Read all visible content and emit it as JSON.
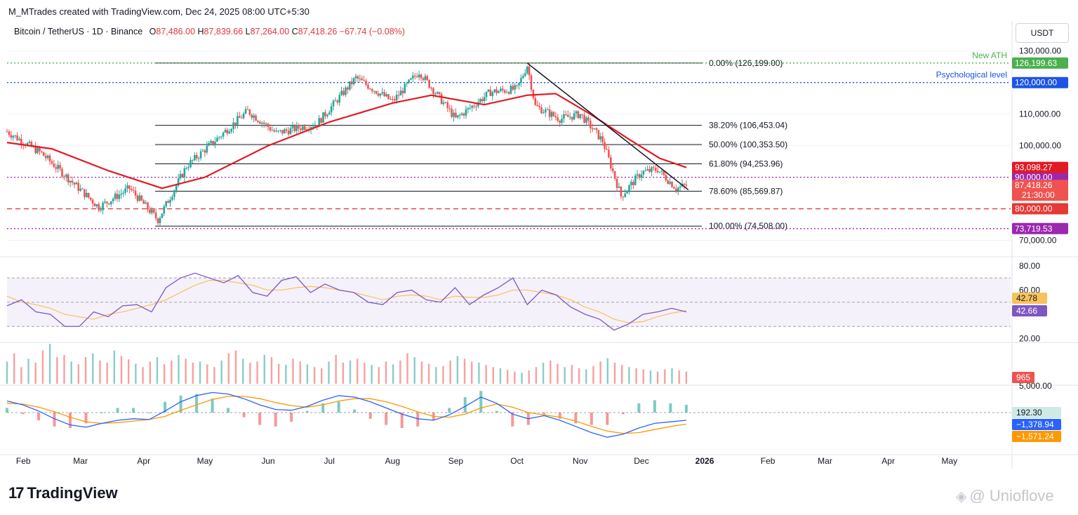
{
  "header": {
    "credit": "M_MTrades created with TradingView.com, Dec 24, 2025 08:00 UTC+5:30",
    "symbol": "Bitcoin / TetherUS · 1D · Binance",
    "o_label": "O",
    "o_value": "87,486.00",
    "h_label": "H",
    "h_value": "87,839.66",
    "l_label": "L",
    "l_value": "87,264.00",
    "c_label": "C",
    "c_value": "87,418.26",
    "change": "−67.74 (−0.08%)",
    "currency_button": "USDT"
  },
  "footer": {
    "logo_mark": "17",
    "logo_text": "TradingView",
    "watermark_icon": "diamond-icon",
    "watermark": "@ Unioflove"
  },
  "colors": {
    "up": "#26a69a",
    "down": "#ef5350",
    "ma": "#e21a24",
    "rsi": "#7e57c2",
    "rsi_ma": "#f7c35c",
    "macd": "#2962ff",
    "signal": "#ff9800",
    "ath": "#4caf50",
    "psych": "#1e53e5",
    "support": "#e53935",
    "low": "#9c27b0"
  },
  "chart_data": [
    {
      "type": "line",
      "name": "price",
      "x": [
        "2025-01-24",
        "2025-02-10",
        "2025-03-01",
        "2025-03-10",
        "2025-03-25",
        "2025-04-08",
        "2025-04-22",
        "2025-05-10",
        "2025-05-22",
        "2025-06-05",
        "2025-06-25",
        "2025-07-14",
        "2025-08-01",
        "2025-08-14",
        "2025-09-01",
        "2025-09-18",
        "2025-10-01",
        "2025-10-06",
        "2025-10-10",
        "2025-10-22",
        "2025-11-01",
        "2025-11-12",
        "2025-11-21",
        "2025-12-01",
        "2025-12-09",
        "2025-12-18",
        "2025-12-23"
      ],
      "close": [
        104500,
        97500,
        86000,
        80500,
        86500,
        76500,
        93500,
        104000,
        111000,
        104000,
        107000,
        121500,
        114000,
        123500,
        108500,
        117000,
        118000,
        125500,
        112500,
        108500,
        110000,
        101500,
        84000,
        91500,
        92500,
        86500,
        87418
      ],
      "ma": {
        "x": [
          "2025-01-24",
          "2025-02-15",
          "2025-03-15",
          "2025-04-10",
          "2025-05-01",
          "2025-06-01",
          "2025-07-01",
          "2025-08-01",
          "2025-08-20",
          "2025-09-15",
          "2025-10-06",
          "2025-10-20",
          "2025-11-06",
          "2025-11-25",
          "2025-12-10",
          "2025-12-23"
        ],
        "values": [
          101000,
          99000,
          92000,
          86500,
          90000,
          100000,
          107500,
          113500,
          116000,
          113000,
          116000,
          116500,
          110000,
          102000,
          96000,
          93098
        ]
      },
      "y_ticks": [
        130000,
        120000,
        110000,
        100000,
        90000,
        80000,
        70000
      ],
      "ylim": [
        67000,
        131500
      ],
      "x_ticks": [
        "Feb",
        "Mar",
        "Apr",
        "May",
        "Jun",
        "Jul",
        "Aug",
        "Sep",
        "Oct",
        "Nov",
        "Dec",
        "2026",
        "Feb",
        "Mar",
        "Apr",
        "May"
      ],
      "fib_levels": [
        {
          "label": "0.00% (126,199.00)",
          "value": 126199
        },
        {
          "label": "38.20% (106,453.04)",
          "value": 106453.04
        },
        {
          "label": "50.00% (100,353.50)",
          "value": 100353.5
        },
        {
          "label": "61.80% (94,253.96)",
          "value": 94253.96
        },
        {
          "label": "78.60% (85,569.87)",
          "value": 85569.87
        },
        {
          "label": "100.00% (74,508.00)",
          "value": 74508
        }
      ],
      "horizontal_levels": [
        {
          "value": 126199.63,
          "label": "New ATH",
          "tag": "126,199.63",
          "color": "#4caf50",
          "style": "dotted"
        },
        {
          "value": 120000,
          "label": "Psychological level",
          "tag": "120,000.00",
          "color": "#1e53e5",
          "style": "dotted"
        },
        {
          "value": 90000,
          "tag": "90,000.00",
          "color": "#9c27b0",
          "style": "dotted"
        },
        {
          "value": 80000,
          "tag": "80,000.00",
          "color": "#e53935",
          "style": "dashed"
        },
        {
          "value": 73719.53,
          "tag": "73,719.53",
          "color": "#9c27b0",
          "style": "dotted"
        }
      ],
      "price_tags": [
        {
          "value": 93098.27,
          "text": "93,098.27",
          "color": "#e21a24"
        },
        {
          "value": 87418.26,
          "text": "87,418.26",
          "sub": "21:30:00",
          "color": "#ef5350"
        }
      ],
      "trendline": {
        "from": [
          "2025-10-06",
          126199
        ],
        "to": [
          "2025-12-24",
          86000
        ]
      }
    },
    {
      "type": "line",
      "name": "rsi",
      "y_ticks": [
        80,
        60,
        20
      ],
      "band": [
        30,
        70
      ],
      "mid": 50,
      "ylim": [
        18,
        84
      ],
      "values_tags": [
        {
          "text": "42.78",
          "color": "#f7c35c",
          "text_color": "#131722"
        },
        {
          "text": "42.66",
          "color": "#7e57c2",
          "text_color": "#ffffff"
        }
      ],
      "rsi": [
        47,
        52,
        42,
        40,
        30,
        30,
        42,
        38,
        47,
        48,
        42,
        62,
        70,
        74,
        70,
        66,
        72,
        58,
        55,
        68,
        71,
        58,
        65,
        60,
        58,
        50,
        48,
        58,
        60,
        52,
        50,
        62,
        48,
        56,
        62,
        70,
        48,
        60,
        56,
        46,
        40,
        36,
        27,
        32,
        40,
        42,
        45,
        42
      ],
      "rsi_ma": [
        55,
        50,
        48,
        45,
        40,
        38,
        36,
        40,
        42,
        45,
        48,
        52,
        58,
        64,
        68,
        68,
        66,
        64,
        60,
        60,
        62,
        63,
        62,
        60,
        58,
        55,
        52,
        55,
        56,
        55,
        52,
        55,
        54,
        54,
        56,
        60,
        60,
        58,
        56,
        52,
        46,
        42,
        36,
        33,
        34,
        38,
        41,
        43
      ]
    },
    {
      "type": "bar",
      "name": "volume",
      "y_ticks": [
        5000
      ],
      "tag": "965",
      "values": [
        40,
        55,
        30,
        45,
        38,
        60,
        72,
        48,
        52,
        40,
        35,
        48,
        55,
        42,
        38,
        60,
        50,
        44,
        36,
        30,
        40,
        48,
        35,
        42,
        52,
        45,
        38,
        40,
        35,
        30,
        42,
        55,
        60,
        45,
        38,
        40,
        52,
        48,
        36,
        34,
        45,
        40,
        35,
        30,
        28,
        40,
        52,
        38,
        42,
        45,
        38,
        34,
        30,
        40,
        35,
        42,
        55,
        48,
        40,
        36,
        30,
        32,
        42,
        50,
        45,
        40,
        38,
        34,
        30,
        28,
        25,
        22,
        20,
        24,
        30,
        38,
        42,
        36,
        30,
        34,
        28,
        26,
        32,
        40,
        46,
        38,
        34,
        30,
        28,
        26,
        24,
        22,
        26,
        28,
        24,
        22
      ]
    },
    {
      "type": "line",
      "name": "macd",
      "tags": [
        {
          "text": "192.30",
          "color": "#cfe9e6",
          "text_color": "#131722"
        },
        {
          "text": "−1,378.94",
          "color": "#2962ff",
          "text_color": "#ffffff"
        },
        {
          "text": "−1,571.24",
          "color": "#ff9800",
          "text_color": "#ffffff"
        }
      ],
      "macd": [
        1.5,
        1.0,
        0.2,
        -0.8,
        -1.6,
        -1.9,
        -1.4,
        -1.0,
        -0.8,
        -0.9,
        0.2,
        1.4,
        2.2,
        2.6,
        2.4,
        1.8,
        1.0,
        0.4,
        0.3,
        0.8,
        1.6,
        2.2,
        2.0,
        1.4,
        0.6,
        -0.2,
        -0.8,
        -1.0,
        -0.3,
        0.8,
        2.0,
        1.2,
        -0.2,
        -0.8,
        -0.4,
        -1.0,
        -1.8,
        -2.6,
        -3.2,
        -2.8,
        -2.0,
        -1.4,
        -1.2,
        -1.0
      ],
      "signal": [
        1.2,
        1.1,
        0.7,
        0.1,
        -0.6,
        -1.2,
        -1.4,
        -1.3,
        -1.1,
        -0.9,
        -0.5,
        0.3,
        1.0,
        1.7,
        2.1,
        2.1,
        1.8,
        1.3,
        0.9,
        0.7,
        1.0,
        1.5,
        1.8,
        1.8,
        1.4,
        0.8,
        0.1,
        -0.5,
        -0.6,
        -0.2,
        0.6,
        1.1,
        0.7,
        0.0,
        -0.3,
        -0.6,
        -1.1,
        -1.8,
        -2.4,
        -2.7,
        -2.6,
        -2.2,
        -1.8,
        -1.5
      ],
      "y_ticks": []
    }
  ]
}
